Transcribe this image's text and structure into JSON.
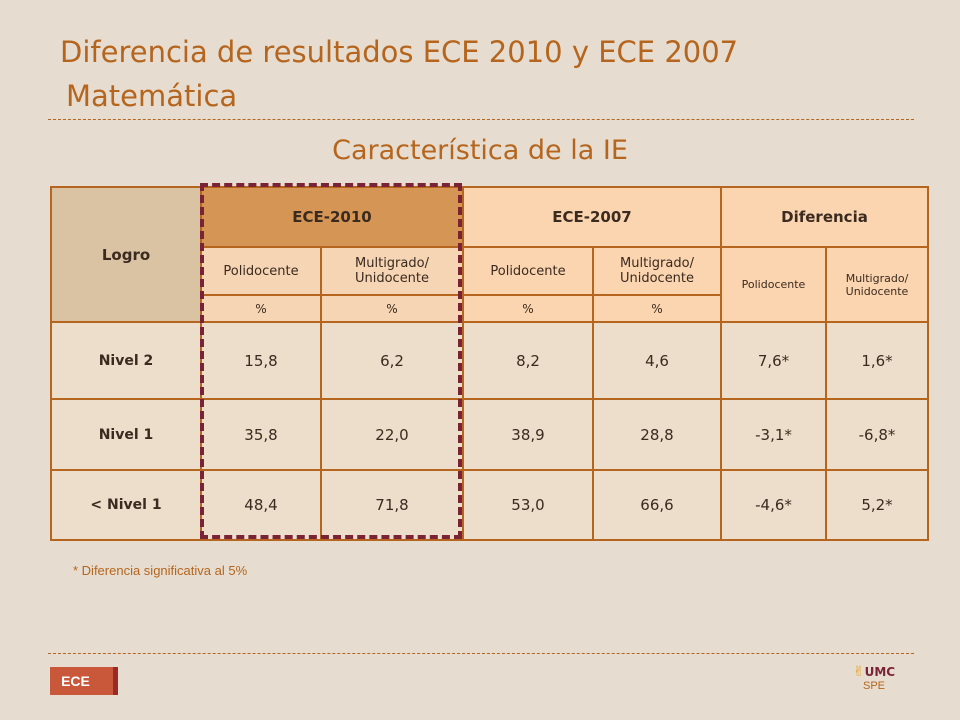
{
  "title": {
    "line1": "Diferencia de resultados ECE 2010 y ECE 2007",
    "line2": "Matemática"
  },
  "subtitle": "Característica de la IE",
  "table": {
    "logro_header": "Logro",
    "groups": [
      "ECE-2010",
      "ECE-2007",
      "Diferencia"
    ],
    "subheaders": {
      "polidocente": "Polidocente",
      "multigrado": "Multigrado/ Unidocente"
    },
    "unit": "%",
    "rows": [
      {
        "label": "Nivel 2",
        "values": [
          "15,8",
          "6,2",
          "8,2",
          "4,6",
          "7,6*",
          "1,6*"
        ]
      },
      {
        "label": "Nivel 1",
        "values": [
          "35,8",
          "22,0",
          "38,9",
          "28,8",
          "-3,1*",
          "-6,8*"
        ]
      },
      {
        "label": "< Nivel 1",
        "values": [
          "48,4",
          "71,8",
          "53,0",
          "66,6",
          "-4,6*",
          "5,2*"
        ]
      }
    ]
  },
  "footnote": "* Diferencia significativa al 5%",
  "footer": {
    "badge": "ECE",
    "logo_text": "UMC",
    "logo_sub": "SPE"
  },
  "colors": {
    "accent": "#b5651d",
    "highlight": "#7a2236",
    "background": "#e6ddd0"
  }
}
